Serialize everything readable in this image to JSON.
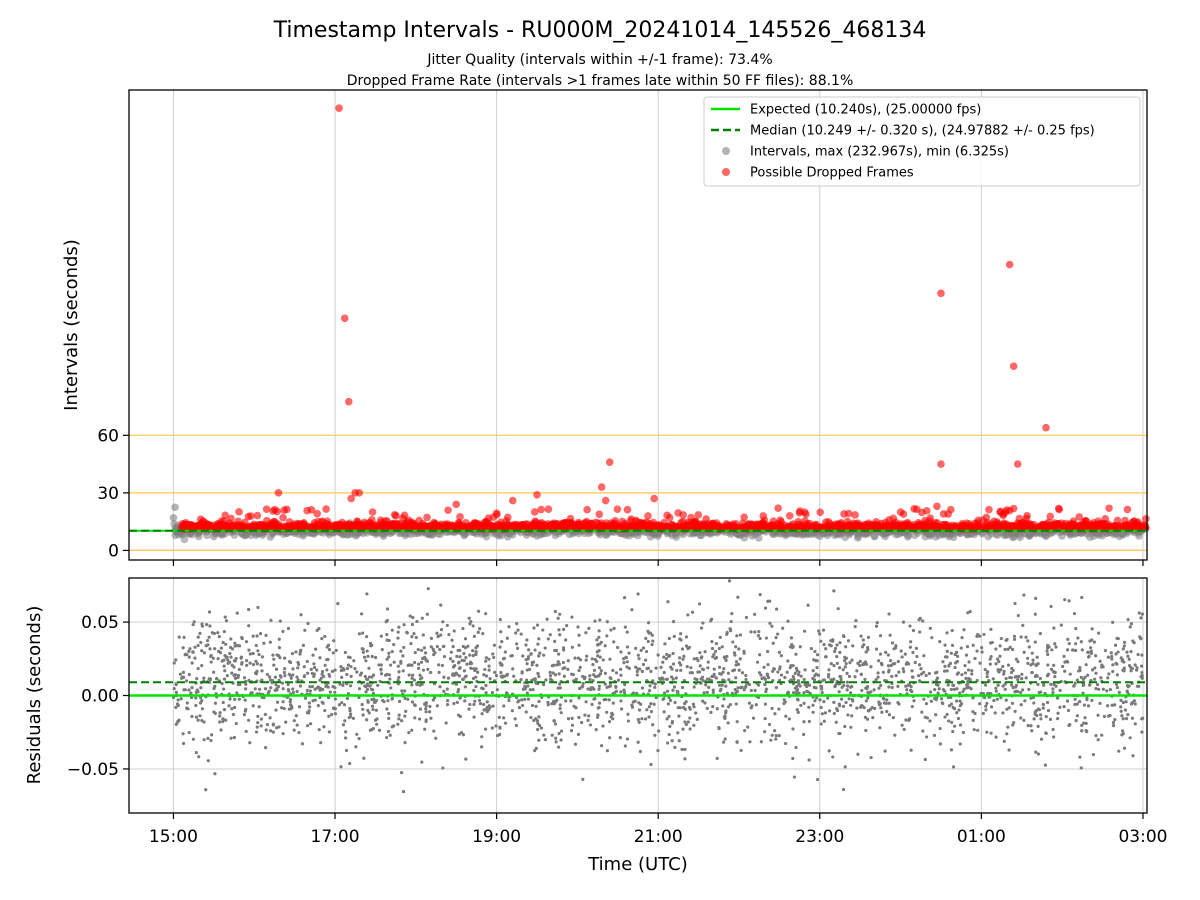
{
  "chart_data": [
    {
      "type": "scatter",
      "title": "Timestamp Intervals - RU000M_20241014_145526_468134",
      "subtitle_lines": [
        "Jitter Quality (intervals within +/-1 frame): 73.4%",
        "Dropped Frame Rate (intervals >1 frames late within 50 FF files): 88.1%"
      ],
      "ylabel": "Intervals (seconds)",
      "xlim_hours": [
        14.45,
        27.05
      ],
      "ylim": [
        -5,
        240
      ],
      "x_tick_labels": [
        "15:00",
        "17:00",
        "19:00",
        "21:00",
        "23:00",
        "01:00",
        "03:00"
      ],
      "x_tick_hours": [
        15,
        17,
        19,
        21,
        23,
        25,
        27
      ],
      "y_ticks": [
        0,
        30,
        60
      ],
      "grid": true,
      "legend_position": "top-right",
      "reference_lines": {
        "expected": {
          "label": "Expected (10.240s), (25.00000 fps)",
          "value": 10.24,
          "color": "#00e600"
        },
        "median": {
          "label": "Median (10.249 +/- 0.320 s), (24.97882 +/- 0.25 fps)",
          "value": 10.249,
          "color": "#008000"
        },
        "threshold_lines": {
          "values": [
            0,
            30,
            60
          ],
          "color": "#ffc84a"
        }
      },
      "series": [
        {
          "name": "Intervals, max (232.967s), min (6.325s)",
          "color": "#808080",
          "points": [
            [
              15.02,
              22.5
            ],
            [
              15.0,
              17.0
            ],
            [
              15.1,
              13.0
            ],
            [
              15.2,
              8.5
            ],
            [
              15.5,
              7.2
            ],
            [
              15.6,
              8.0
            ],
            [
              16.1,
              8.0
            ],
            [
              16.2,
              7.0
            ],
            [
              16.5,
              9.0
            ],
            [
              17.2,
              8.5
            ],
            [
              17.6,
              7.5
            ],
            [
              18.2,
              8.0
            ],
            [
              18.6,
              7.8
            ],
            [
              19.2,
              8.2
            ],
            [
              19.5,
              7.6
            ],
            [
              19.9,
              8.4
            ],
            [
              20.6,
              8.0
            ],
            [
              21.0,
              8.5
            ],
            [
              22.0,
              8.2
            ],
            [
              23.0,
              7.5
            ],
            [
              24.1,
              7.8
            ],
            [
              24.6,
              7.2
            ],
            [
              25.2,
              8.0
            ],
            [
              25.4,
              7.0
            ],
            [
              25.6,
              7.8
            ],
            [
              26.1,
              8.0
            ]
          ]
        },
        {
          "name": "Possible Dropped Frames",
          "color": "#ff0000",
          "points": [
            [
              17.05,
              230.5
            ],
            [
              17.12,
              121.0
            ],
            [
              17.17,
              77.5
            ],
            [
              16.3,
              30.0
            ],
            [
              17.25,
              30.0
            ],
            [
              17.3,
              30.0
            ],
            [
              17.2,
              27.0
            ],
            [
              19.5,
              29.0
            ],
            [
              19.2,
              26.0
            ],
            [
              20.4,
              46.0
            ],
            [
              20.3,
              33.0
            ],
            [
              20.35,
              26.0
            ],
            [
              20.95,
              27.0
            ],
            [
              24.5,
              134.0
            ],
            [
              24.5,
              45.0
            ],
            [
              24.45,
              23.0
            ],
            [
              25.35,
              149.0
            ],
            [
              25.4,
              96.0
            ],
            [
              25.45,
              45.0
            ],
            [
              25.8,
              64.0
            ],
            [
              18.5,
              24.0
            ],
            [
              22.3,
              18.0
            ],
            [
              23.3,
              19.0
            ],
            [
              24.0,
              20.0
            ],
            [
              25.3,
              20.0
            ]
          ]
        }
      ]
    },
    {
      "type": "scatter",
      "ylabel": "Residuals (seconds)",
      "xlabel": "Time (UTC)",
      "xlim_hours": [
        14.45,
        27.05
      ],
      "ylim": [
        -0.08,
        0.08
      ],
      "y_tick_labels": [
        "0.05",
        "0.00",
        "−0.05"
      ],
      "y_ticks": [
        0.05,
        0.0,
        -0.05
      ],
      "x_tick_labels": [
        "15:00",
        "17:00",
        "19:00",
        "21:00",
        "23:00",
        "01:00",
        "03:00"
      ],
      "x_tick_hours": [
        15,
        17,
        19,
        21,
        23,
        25,
        27
      ],
      "grid": true,
      "reference_lines": {
        "expected_residual": 0.0,
        "median_residual": 0.009
      },
      "series": [
        {
          "color": "#7a7a7a",
          "x_range_hours": [
            15.0,
            27.0
          ],
          "approx_points": 2600,
          "spread_sd": 0.022,
          "center": 0.009
        }
      ]
    }
  ]
}
